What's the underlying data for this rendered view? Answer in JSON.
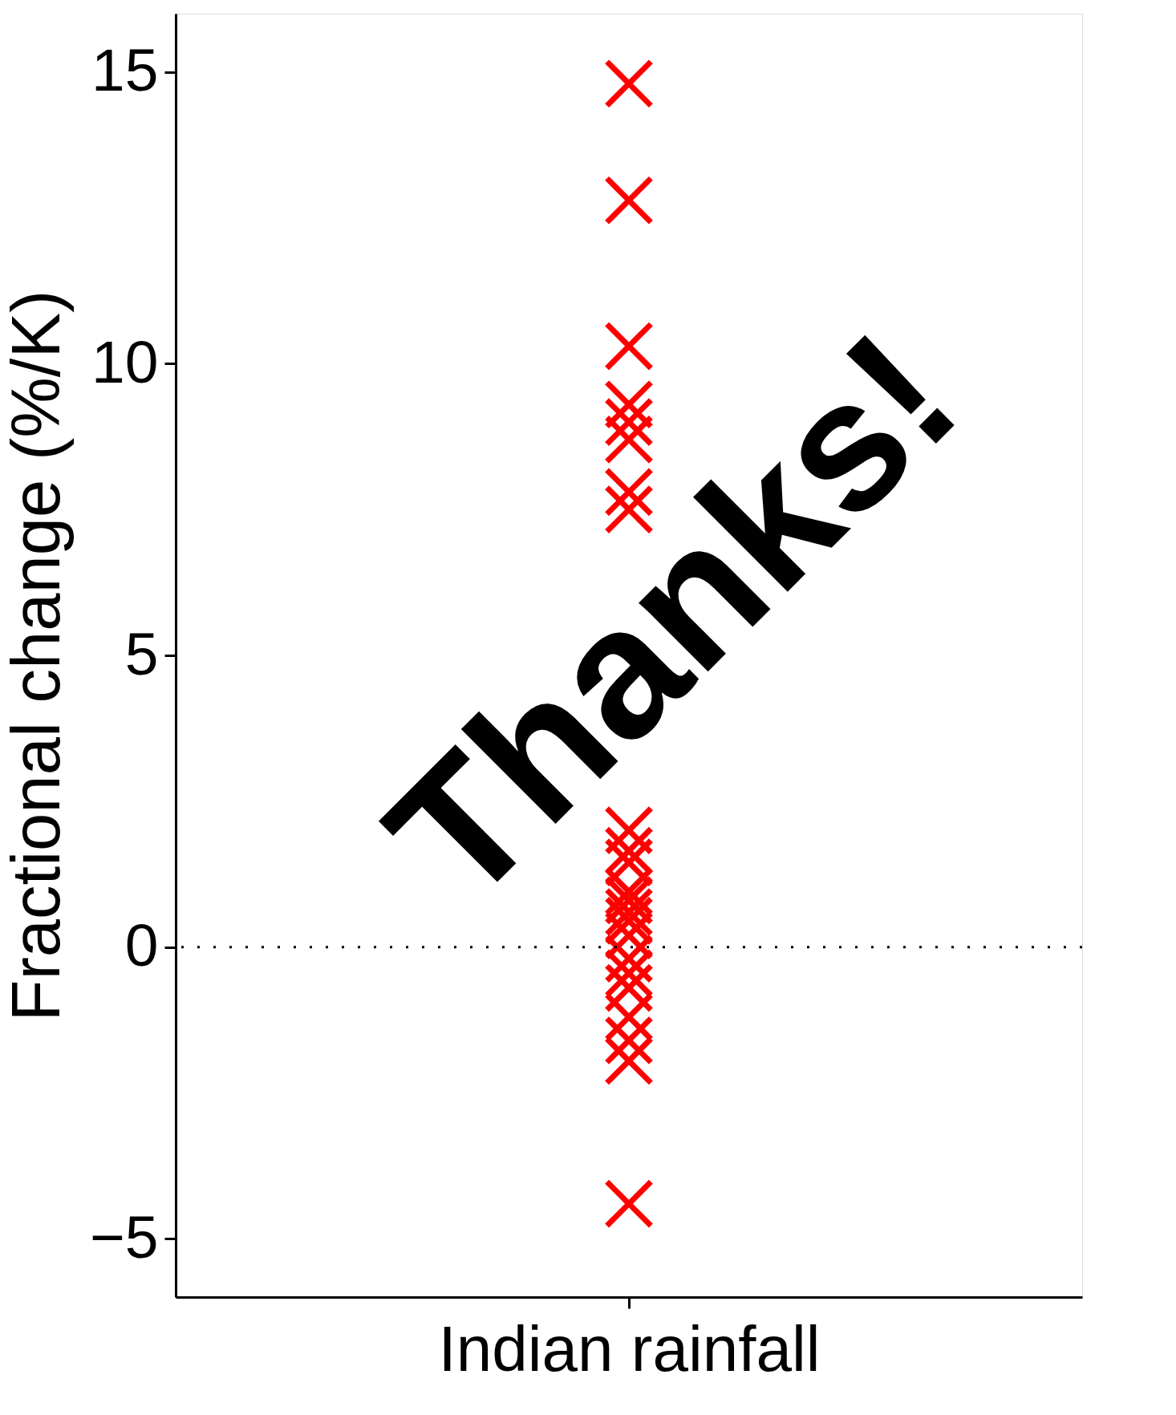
{
  "chart_data": {
    "type": "scatter",
    "ylabel": "Fractional change (%/K)",
    "categories": [
      "Indian rainfall"
    ],
    "series": [
      {
        "color": "#ff0000",
        "x": [
          "Indian rainfall",
          "Indian rainfall",
          "Indian rainfall",
          "Indian rainfall",
          "Indian rainfall",
          "Indian rainfall",
          "Indian rainfall",
          "Indian rainfall",
          "Indian rainfall",
          "Indian rainfall",
          "Indian rainfall",
          "Indian rainfall",
          "Indian rainfall",
          "Indian rainfall",
          "Indian rainfall",
          "Indian rainfall",
          "Indian rainfall",
          "Indian rainfall",
          "Indian rainfall",
          "Indian rainfall",
          "Indian rainfall",
          "Indian rainfall",
          "Indian rainfall"
        ],
        "values": [
          14.8,
          12.8,
          10.3,
          9.3,
          9.0,
          8.7,
          7.8,
          7.5,
          2.0,
          1.65,
          1.45,
          0.95,
          0.8,
          0.6,
          0.45,
          0.2,
          -0.2,
          -0.45,
          -0.7,
          -1.2,
          -1.6,
          -1.95,
          -4.4
        ]
      }
    ],
    "marker": "cross",
    "ylim": [
      -6,
      16
    ],
    "yticks": [
      {
        "value": -5,
        "label": "−5"
      },
      0,
      5,
      10,
      15
    ],
    "grid": false,
    "ref_lines": [
      {
        "axis": "y",
        "value": 0,
        "line_style": "dotted",
        "color": "#000000"
      }
    ],
    "annotations": [
      "Thanks!"
    ]
  }
}
